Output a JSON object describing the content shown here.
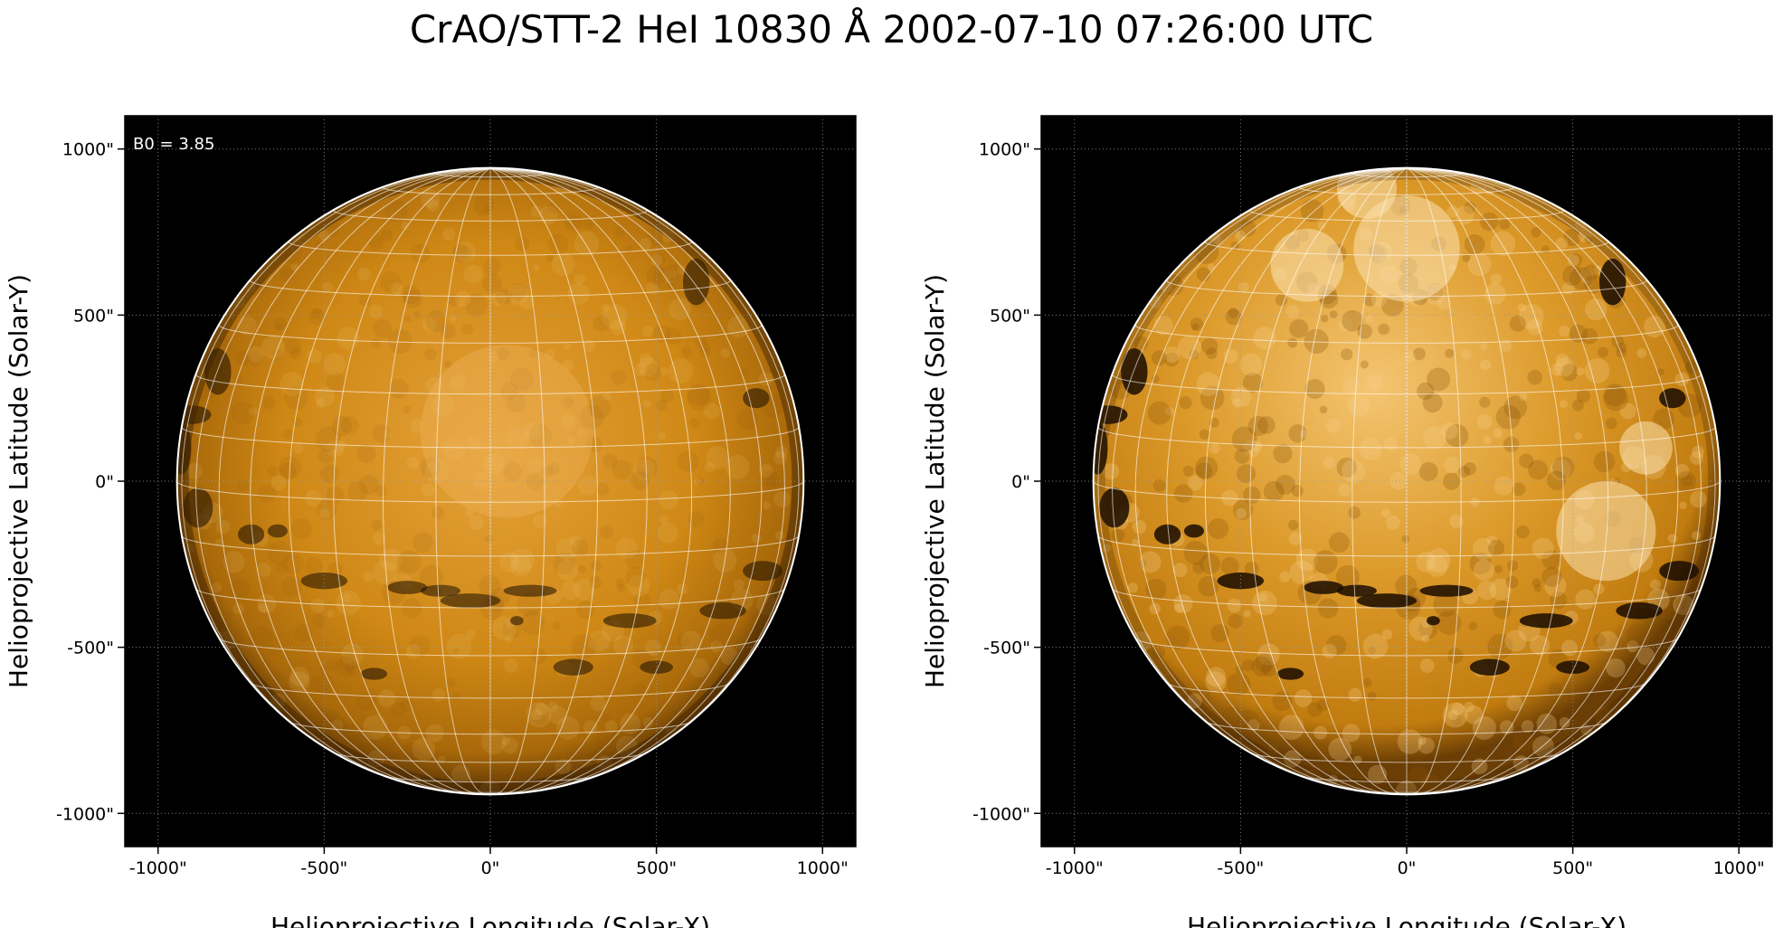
{
  "title": "CrAO/STT-2 HeI 10830 Å 2002-07-10 07:26:00 UTC",
  "colors": {
    "background": "#000000",
    "sun_base": "#c8820e",
    "sun_bright": "#f6cd80",
    "limb": "#ffffff",
    "grid": "#ffffff"
  },
  "panels": [
    {
      "name": "left",
      "annotation": "B0 = 3.85",
      "xlabel": "Helioprojective Longitude (Solar-X)",
      "ylabel": "Helioprojective Latitude (Solar-Y)",
      "xlim": [
        -1100,
        1100
      ],
      "ylim": [
        -1100,
        1100
      ],
      "x_ticks": [
        "-1000\"",
        "-500\"",
        "0\"",
        "500\"",
        "1000\""
      ],
      "y_ticks": [
        "1000\"",
        "500\"",
        "0\"",
        "-500\"",
        "-1000\""
      ],
      "solar_radius_arcsec": 943,
      "contrast": "normal"
    },
    {
      "name": "right",
      "annotation": "",
      "xlabel": "Helioprojective Longitude (Solar-X)",
      "ylabel": "Helioprojective Latitude (Solar-Y)",
      "xlim": [
        -1100,
        1100
      ],
      "ylim": [
        -1100,
        1100
      ],
      "x_ticks": [
        "-1000\"",
        "-500\"",
        "0\"",
        "500\"",
        "1000\""
      ],
      "y_ticks": [
        "1000\"",
        "500\"",
        "0\"",
        "-500\"",
        "-1000\""
      ],
      "solar_radius_arcsec": 943,
      "contrast": "enhanced"
    }
  ]
}
